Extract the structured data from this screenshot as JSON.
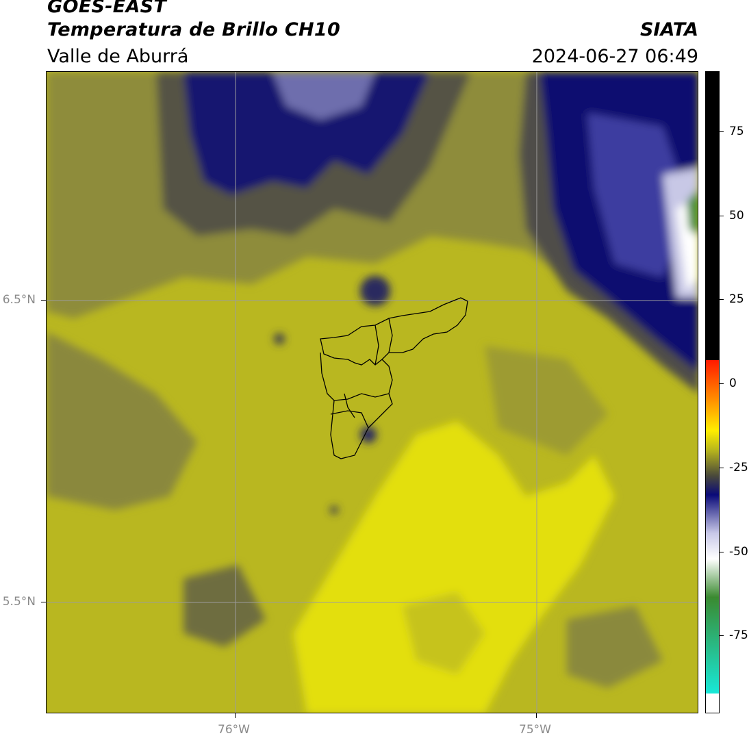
{
  "header": {
    "satellite": "GOES-EAST",
    "product": "Temperatura de Brillo CH10",
    "region": "Valle de Aburrá",
    "org": "SIATA",
    "datetime": "2024-06-27 06:49"
  },
  "map": {
    "lat_labels": [
      {
        "label": "6.5°N",
        "value": 6.5
      },
      {
        "label": "5.5°N",
        "value": 5.5
      }
    ],
    "lon_labels": [
      {
        "label": "76°W",
        "value": -76
      },
      {
        "label": "75°W",
        "value": -75
      }
    ]
  },
  "colorbar": {
    "ticks": [
      75,
      50,
      25,
      0,
      -25,
      -50,
      -75
    ],
    "tick_labels": [
      "75",
      "50",
      "25",
      "0",
      "-25",
      "-50",
      "-75"
    ],
    "colors": {
      "black": "#000000",
      "red": "#ff1a00",
      "orange": "#ff8c00",
      "yellow": "#ffee00",
      "olive": "#b8b61c",
      "gray": "#4a4a3a",
      "navy": "#0a0a78",
      "lavender": "#c8c8e8",
      "white": "#ffffff",
      "green": "#3a8a30",
      "cyan": "#18e8d8"
    }
  }
}
